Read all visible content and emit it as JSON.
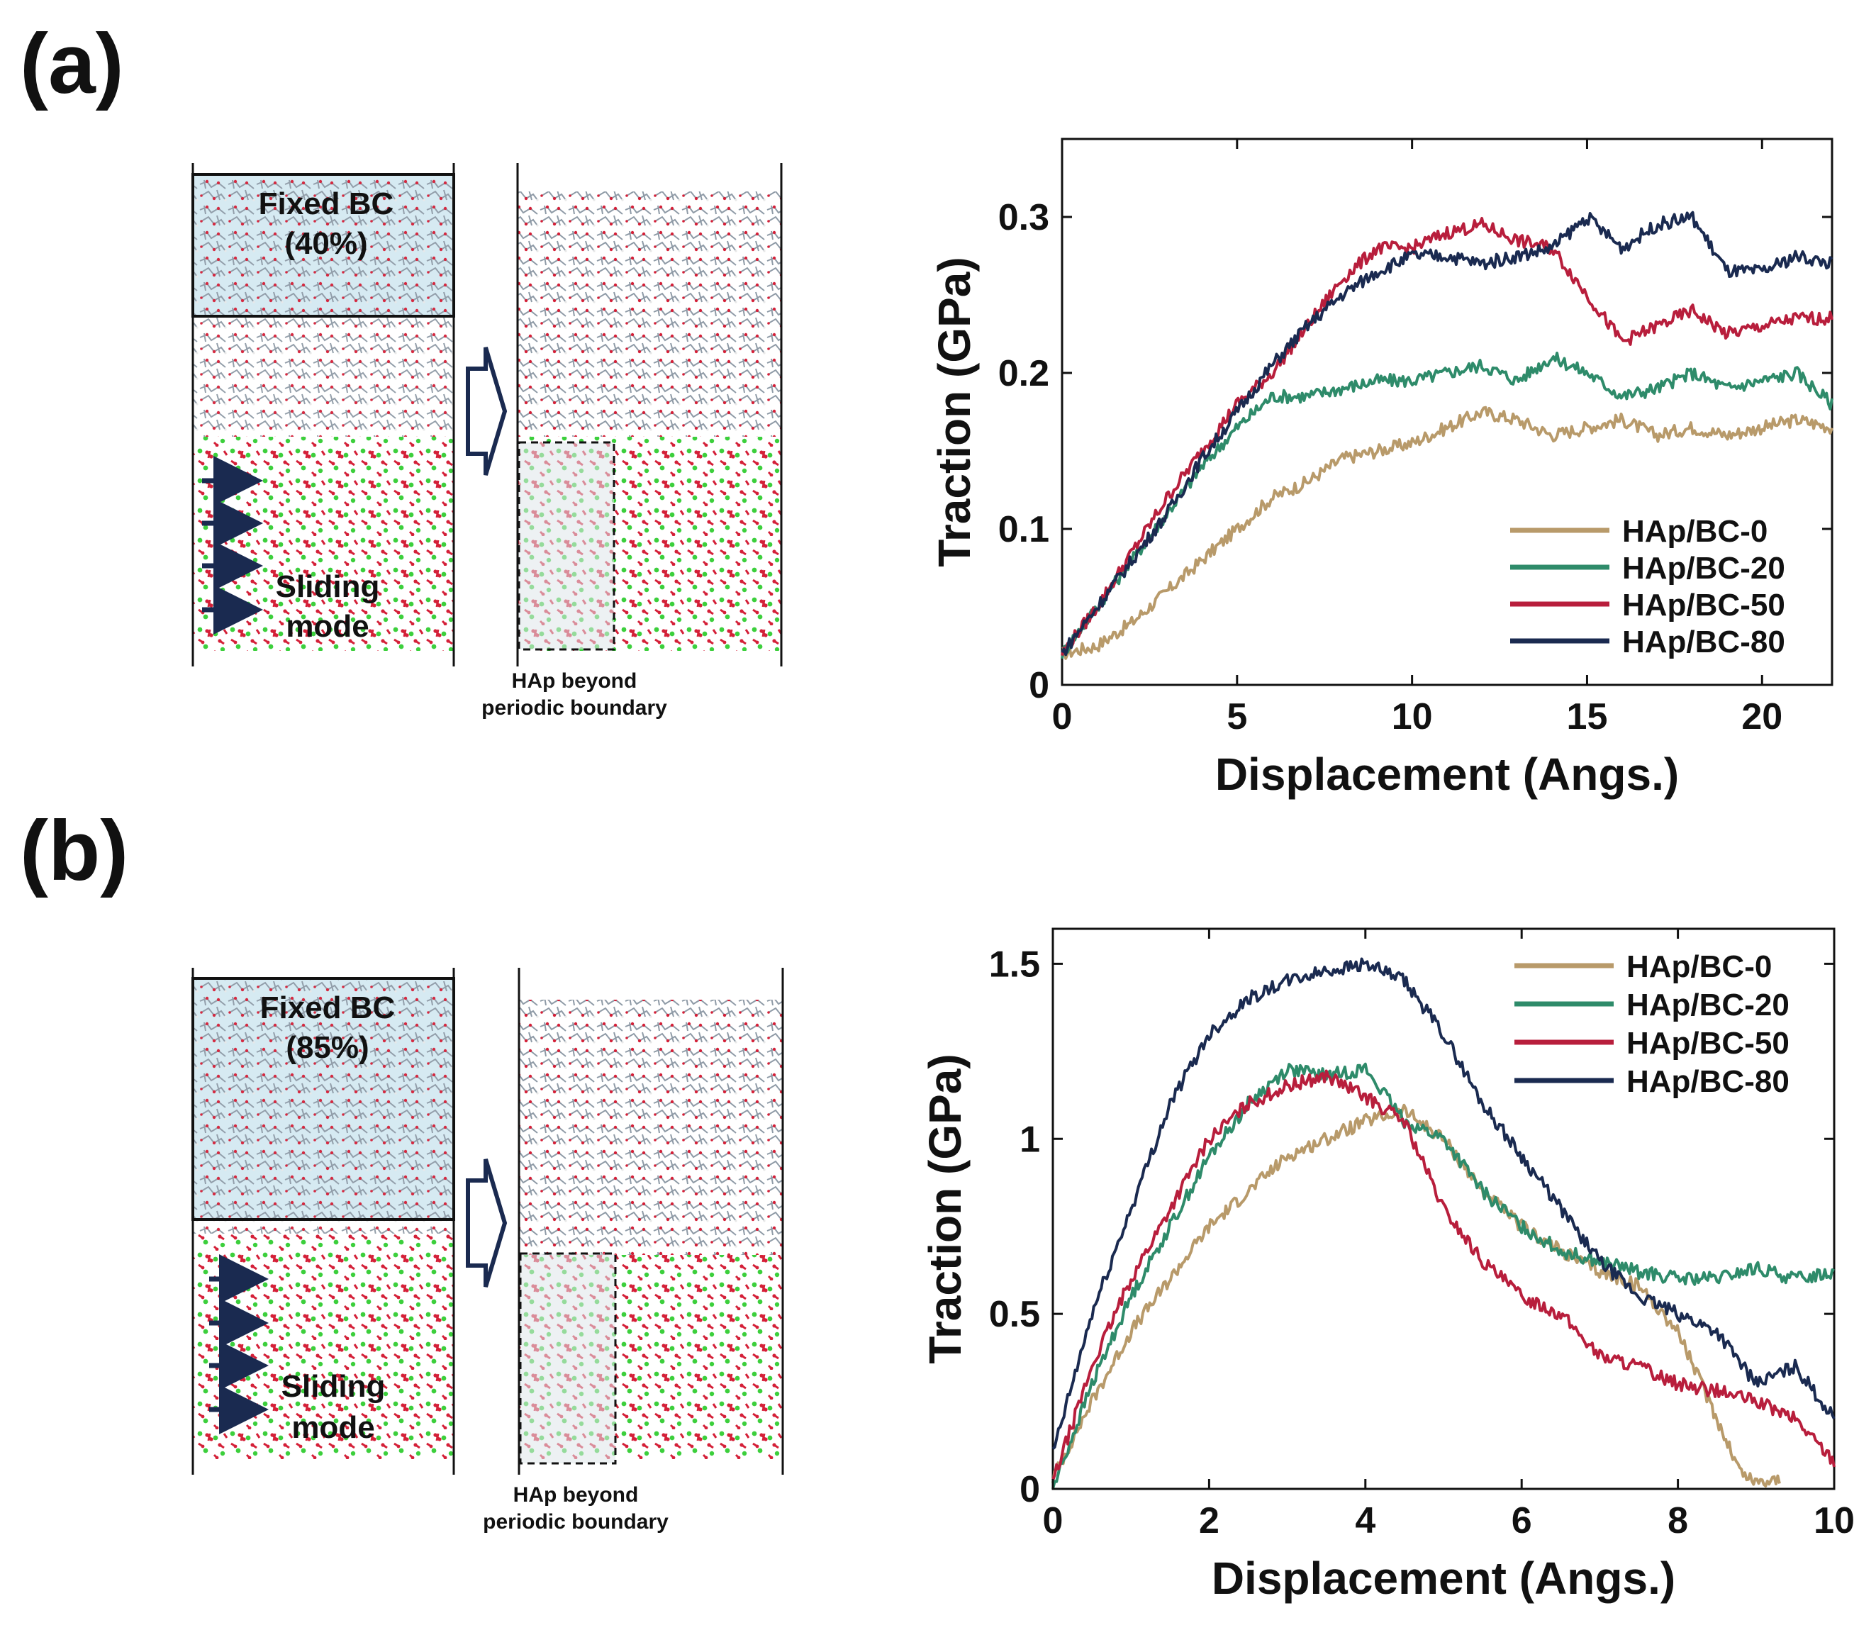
{
  "panels": [
    {
      "letter": "(a)",
      "sim": {
        "box_title": "Fixed BC",
        "box_percent": "(40%)",
        "mode_label_1": "Sliding",
        "mode_label_2": "mode",
        "caption_1": "HAp beyond",
        "caption_2": "periodic boundary"
      }
    },
    {
      "letter": "(b)",
      "sim": {
        "box_title": "Fixed BC",
        "box_percent": "(85%)",
        "mode_label_1": "Sliding",
        "mode_label_2": "mode",
        "caption_1": "HAp beyond",
        "caption_2": "periodic boundary"
      }
    }
  ],
  "colors": {
    "HAp/BC-0": "#b89a6a",
    "HAp/BC-20": "#2e8b6a",
    "HAp/BC-50": "#b81e3c",
    "HAp/BC-80": "#1a2a50",
    "fixed_box": "#d6eaf2",
    "polymer": "#8e9aa6",
    "oxygen": "#d42038",
    "calcium": "#3ccf3c"
  },
  "chart_data": [
    {
      "type": "line",
      "title": "",
      "xlabel": "Displacement (Angs.)",
      "ylabel": "Traction (GPa)",
      "xlim": [
        0,
        22
      ],
      "ylim": [
        0,
        0.35
      ],
      "xticks": [
        0,
        5,
        10,
        15,
        20
      ],
      "xtick_labels": [
        "0",
        "5",
        "10",
        "15",
        "20"
      ],
      "yticks": [
        0,
        0.1,
        0.2,
        0.3
      ],
      "ytick_labels": [
        "0",
        "0.1",
        "0.2",
        "0.3"
      ],
      "grid": false,
      "legend_position": "bottom-right",
      "series": [
        {
          "name": "HAp/BC-0",
          "x": [
            0,
            1,
            2,
            3,
            4,
            5,
            6,
            7,
            8,
            9,
            10,
            11,
            12,
            13,
            14,
            15,
            16,
            17,
            18,
            19,
            20,
            21,
            22
          ],
          "y": [
            0.02,
            0.025,
            0.04,
            0.06,
            0.08,
            0.1,
            0.12,
            0.13,
            0.145,
            0.15,
            0.155,
            0.165,
            0.175,
            0.17,
            0.16,
            0.165,
            0.17,
            0.16,
            0.165,
            0.16,
            0.165,
            0.17,
            0.165
          ]
        },
        {
          "name": "HAp/BC-20",
          "x": [
            0,
            1,
            2,
            3,
            4,
            5,
            6,
            7,
            8,
            9,
            10,
            11,
            12,
            13,
            14,
            15,
            16,
            17,
            18,
            19,
            20,
            21,
            22
          ],
          "y": [
            0.02,
            0.05,
            0.08,
            0.11,
            0.14,
            0.165,
            0.185,
            0.185,
            0.19,
            0.195,
            0.195,
            0.2,
            0.205,
            0.195,
            0.21,
            0.2,
            0.185,
            0.19,
            0.2,
            0.19,
            0.195,
            0.2,
            0.18
          ]
        },
        {
          "name": "HAp/BC-50",
          "x": [
            0,
            1,
            2,
            3,
            4,
            5,
            6,
            7,
            8,
            9,
            10,
            11,
            12,
            13,
            14,
            15,
            16,
            17,
            18,
            19,
            20,
            21,
            22
          ],
          "y": [
            0.02,
            0.05,
            0.085,
            0.12,
            0.15,
            0.18,
            0.2,
            0.23,
            0.26,
            0.28,
            0.28,
            0.29,
            0.295,
            0.285,
            0.28,
            0.25,
            0.22,
            0.23,
            0.24,
            0.225,
            0.23,
            0.235,
            0.235
          ]
        },
        {
          "name": "HAp/BC-80",
          "x": [
            0,
            1,
            2,
            3,
            4,
            5,
            6,
            7,
            8,
            9,
            10,
            11,
            12,
            13,
            14,
            15,
            16,
            17,
            18,
            19,
            20,
            21,
            22
          ],
          "y": [
            0.02,
            0.05,
            0.08,
            0.11,
            0.145,
            0.175,
            0.205,
            0.23,
            0.25,
            0.265,
            0.275,
            0.275,
            0.27,
            0.275,
            0.28,
            0.3,
            0.28,
            0.295,
            0.3,
            0.265,
            0.265,
            0.275,
            0.27
          ]
        }
      ]
    },
    {
      "type": "line",
      "title": "",
      "xlabel": "Displacement (Angs.)",
      "ylabel": "Traction (GPa)",
      "xlim": [
        0,
        10
      ],
      "ylim": [
        0,
        1.6
      ],
      "xticks": [
        0,
        2,
        4,
        6,
        8,
        10
      ],
      "xtick_labels": [
        "0",
        "2",
        "4",
        "6",
        "8",
        "10"
      ],
      "yticks": [
        0,
        0.5,
        1,
        1.5
      ],
      "ytick_labels": [
        "0",
        "0.5",
        "1",
        "1.5"
      ],
      "grid": false,
      "legend_position": "top-right",
      "series": [
        {
          "name": "HAp/BC-0",
          "x": [
            0,
            0.5,
            1,
            1.5,
            2,
            2.5,
            3,
            3.5,
            4,
            4.5,
            5,
            5.5,
            6,
            6.5,
            7,
            7.5,
            8,
            8.5,
            8.8,
            9,
            9.3
          ],
          "y": [
            0.03,
            0.25,
            0.45,
            0.6,
            0.75,
            0.85,
            0.95,
            1.0,
            1.05,
            1.08,
            1.0,
            0.85,
            0.75,
            0.68,
            0.62,
            0.58,
            0.45,
            0.2,
            0.05,
            0.02,
            0.03
          ]
        },
        {
          "name": "HAp/BC-20",
          "x": [
            0,
            0.5,
            1,
            1.5,
            2,
            2.5,
            3,
            3.5,
            4,
            4.5,
            5,
            5.5,
            6,
            6.5,
            7,
            7.5,
            8,
            8.5,
            9,
            9.5,
            10
          ],
          "y": [
            0.0,
            0.3,
            0.55,
            0.75,
            0.95,
            1.1,
            1.2,
            1.18,
            1.2,
            1.05,
            1.0,
            0.85,
            0.75,
            0.68,
            0.65,
            0.62,
            0.6,
            0.6,
            0.63,
            0.6,
            0.62
          ]
        },
        {
          "name": "HAp/BC-50",
          "x": [
            0,
            0.5,
            1,
            1.5,
            2,
            2.5,
            3,
            3.5,
            4,
            4.5,
            5,
            5.5,
            6,
            6.5,
            7,
            7.5,
            8,
            8.5,
            9,
            9.5,
            10
          ],
          "y": [
            0.02,
            0.35,
            0.6,
            0.8,
            1.0,
            1.1,
            1.15,
            1.18,
            1.12,
            1.05,
            0.8,
            0.65,
            0.55,
            0.5,
            0.38,
            0.35,
            0.3,
            0.28,
            0.25,
            0.2,
            0.08
          ]
        },
        {
          "name": "HAp/BC-80",
          "x": [
            0,
            0.5,
            1,
            1.5,
            2,
            2.5,
            3,
            3.5,
            4,
            4.5,
            5,
            5.5,
            6,
            6.5,
            7,
            7.5,
            8,
            8.5,
            9,
            9.5,
            10
          ],
          "y": [
            0.1,
            0.5,
            0.8,
            1.1,
            1.3,
            1.4,
            1.45,
            1.48,
            1.5,
            1.45,
            1.3,
            1.1,
            0.95,
            0.8,
            0.65,
            0.55,
            0.5,
            0.45,
            0.3,
            0.35,
            0.2
          ]
        }
      ]
    }
  ]
}
